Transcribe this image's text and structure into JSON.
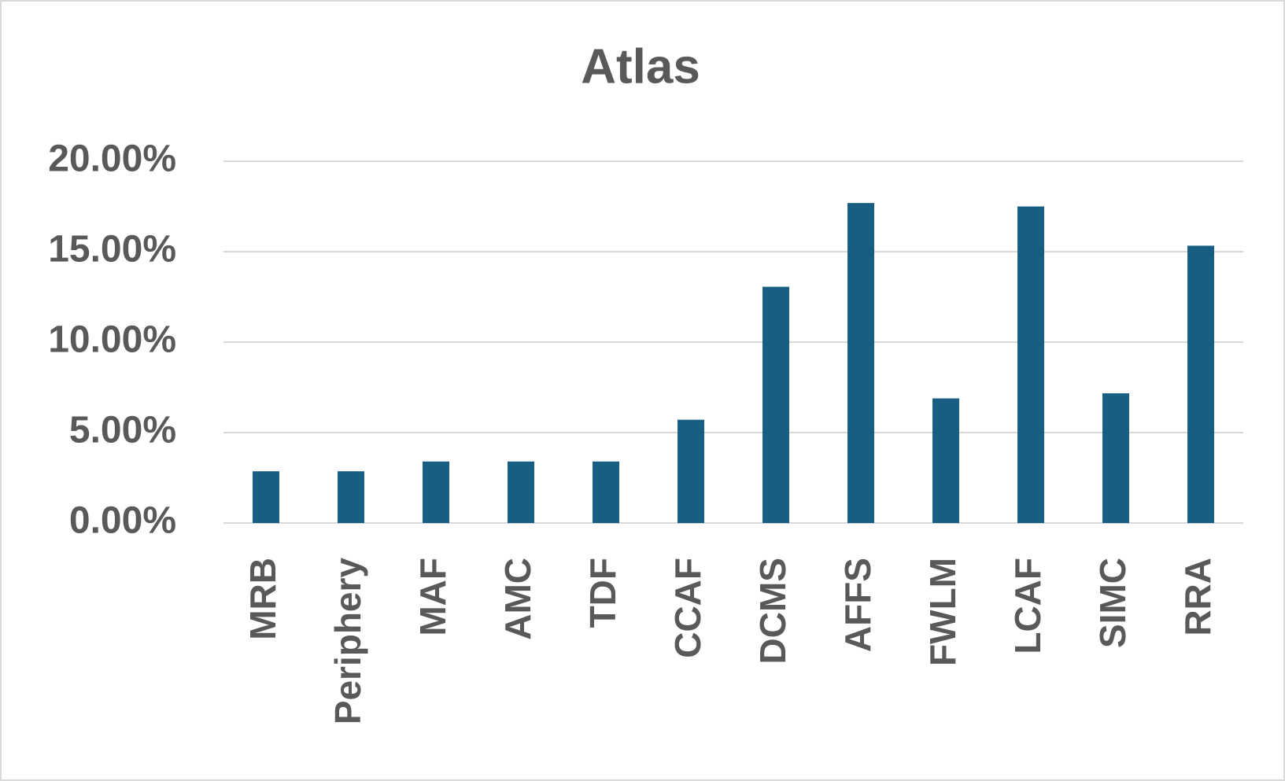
{
  "chart_data": {
    "type": "bar",
    "title": "Atlas",
    "categories": [
      "MRB",
      "Periphery",
      "MAF",
      "AMC",
      "TDF",
      "CCAF",
      "DCMS",
      "AFFS",
      "FWLM",
      "LCAF",
      "SIMC",
      "RRA"
    ],
    "values": [
      2.86,
      2.86,
      3.4,
      3.4,
      3.4,
      5.71,
      13.06,
      17.69,
      6.89,
      17.5,
      7.17,
      15.33
    ],
    "color": "#175e82",
    "ylim": [
      0,
      20
    ],
    "yticks": [
      {
        "value": 0,
        "label": "0.00%"
      },
      {
        "value": 5,
        "label": "5.00%"
      },
      {
        "value": 10,
        "label": "10.00%"
      },
      {
        "value": 15,
        "label": "15.00%"
      },
      {
        "value": 20,
        "label": "20.00%"
      }
    ],
    "grid": true
  }
}
